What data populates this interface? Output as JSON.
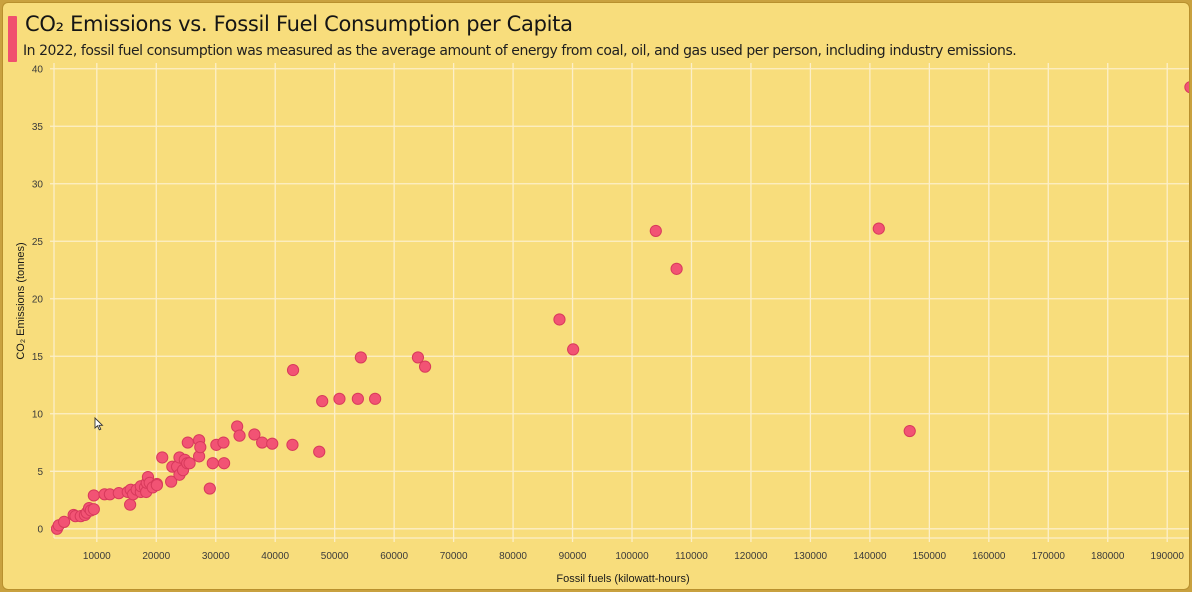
{
  "header": {
    "title": "CO₂ Emissions vs. Fossil Fuel Consumption per Capita",
    "subtitle": "In 2022, fossil fuel consumption was measured as the average amount of energy from coal, oil, and gas used per person, including industry emissions.",
    "accent_color": "#f0506e"
  },
  "chart_data": {
    "type": "scatter",
    "title": "CO₂ Emissions vs. Fossil Fuel Consumption per Capita",
    "subtitle": "In 2022, fossil fuel consumption was measured as the average amount of energy from coal, oil, and gas used per person, including industry emissions.",
    "xlabel": "Fossil fuels (kilowatt-hours)",
    "ylabel": "CO₂ Emissions (tonnes)",
    "xlim": [
      2800,
      194000
    ],
    "ylim": [
      -0.8,
      40.5
    ],
    "x_ticks": [
      10000,
      20000,
      30000,
      40000,
      50000,
      60000,
      70000,
      80000,
      90000,
      100000,
      110000,
      120000,
      130000,
      140000,
      150000,
      160000,
      170000,
      180000,
      190000
    ],
    "y_ticks": [
      0,
      5,
      10,
      15,
      20,
      25,
      30,
      35,
      40
    ],
    "grid": true,
    "legend": "none",
    "point_color": "#f25374",
    "background_color": "#f8dd7c",
    "points": [
      {
        "x": 3300,
        "y": 0.0
      },
      {
        "x": 3600,
        "y": 0.3
      },
      {
        "x": 4500,
        "y": 0.6
      },
      {
        "x": 6100,
        "y": 1.2
      },
      {
        "x": 6400,
        "y": 1.1
      },
      {
        "x": 7300,
        "y": 1.1
      },
      {
        "x": 8000,
        "y": 1.2
      },
      {
        "x": 8300,
        "y": 1.4
      },
      {
        "x": 8700,
        "y": 1.8
      },
      {
        "x": 9000,
        "y": 1.6
      },
      {
        "x": 9500,
        "y": 1.7
      },
      {
        "x": 9500,
        "y": 2.9
      },
      {
        "x": 11300,
        "y": 3.0
      },
      {
        "x": 12200,
        "y": 3.0
      },
      {
        "x": 13700,
        "y": 3.1
      },
      {
        "x": 15200,
        "y": 3.2
      },
      {
        "x": 15600,
        "y": 2.1
      },
      {
        "x": 15700,
        "y": 3.4
      },
      {
        "x": 16100,
        "y": 3.0
      },
      {
        "x": 16700,
        "y": 3.4
      },
      {
        "x": 17400,
        "y": 3.2
      },
      {
        "x": 17400,
        "y": 3.7
      },
      {
        "x": 18100,
        "y": 3.6
      },
      {
        "x": 18300,
        "y": 3.2
      },
      {
        "x": 18400,
        "y": 4.0
      },
      {
        "x": 18600,
        "y": 4.5
      },
      {
        "x": 18900,
        "y": 4.0
      },
      {
        "x": 19400,
        "y": 3.6
      },
      {
        "x": 20100,
        "y": 3.9
      },
      {
        "x": 20100,
        "y": 3.8
      },
      {
        "x": 21000,
        "y": 6.2
      },
      {
        "x": 22500,
        "y": 4.1
      },
      {
        "x": 22700,
        "y": 5.4
      },
      {
        "x": 23500,
        "y": 5.4
      },
      {
        "x": 23900,
        "y": 6.2
      },
      {
        "x": 23900,
        "y": 4.7
      },
      {
        "x": 24500,
        "y": 5.1
      },
      {
        "x": 24800,
        "y": 6.0
      },
      {
        "x": 25200,
        "y": 5.7
      },
      {
        "x": 25300,
        "y": 7.5
      },
      {
        "x": 25600,
        "y": 5.7
      },
      {
        "x": 27200,
        "y": 6.3
      },
      {
        "x": 27200,
        "y": 7.7
      },
      {
        "x": 27400,
        "y": 7.1
      },
      {
        "x": 29000,
        "y": 3.5
      },
      {
        "x": 29500,
        "y": 5.7
      },
      {
        "x": 30100,
        "y": 7.3
      },
      {
        "x": 31300,
        "y": 7.5
      },
      {
        "x": 31400,
        "y": 5.7
      },
      {
        "x": 33600,
        "y": 8.9
      },
      {
        "x": 34000,
        "y": 8.1
      },
      {
        "x": 36500,
        "y": 8.2
      },
      {
        "x": 37800,
        "y": 7.5
      },
      {
        "x": 39500,
        "y": 7.4
      },
      {
        "x": 42900,
        "y": 7.3
      },
      {
        "x": 43000,
        "y": 13.8
      },
      {
        "x": 47400,
        "y": 6.7
      },
      {
        "x": 47900,
        "y": 11.1
      },
      {
        "x": 50800,
        "y": 11.3
      },
      {
        "x": 53900,
        "y": 11.3
      },
      {
        "x": 54400,
        "y": 14.9
      },
      {
        "x": 56800,
        "y": 11.3
      },
      {
        "x": 64000,
        "y": 14.9
      },
      {
        "x": 65200,
        "y": 14.1
      },
      {
        "x": 87800,
        "y": 18.2
      },
      {
        "x": 90100,
        "y": 15.6
      },
      {
        "x": 104000,
        "y": 25.9
      },
      {
        "x": 107500,
        "y": 22.6
      },
      {
        "x": 141500,
        "y": 26.1
      },
      {
        "x": 146700,
        "y": 8.5
      },
      {
        "x": 193900,
        "y": 38.4
      }
    ]
  }
}
